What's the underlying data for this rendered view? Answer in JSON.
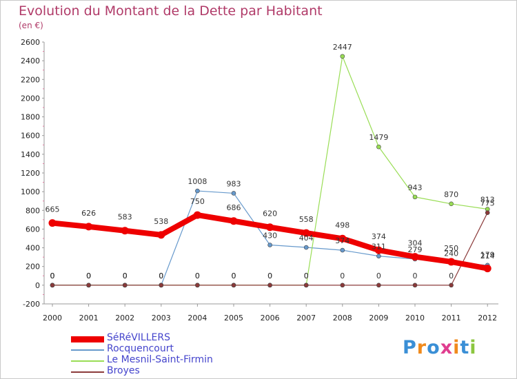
{
  "header": {
    "title": "Evolution du Montant de la Dette par Habitant",
    "subtitle": "(en €)"
  },
  "logo": {
    "text": "Proxiti"
  },
  "chart_data": {
    "type": "line",
    "title": "Evolution du Montant de la Dette par Habitant",
    "subtitle": "(en €)",
    "xlabel": "",
    "ylabel": "",
    "categories": [
      "2000",
      "2001",
      "2002",
      "2003",
      "2004",
      "2005",
      "2006",
      "2007",
      "2008",
      "2009",
      "2010",
      "2011",
      "2012"
    ],
    "ylim": [
      -200,
      2600
    ],
    "yticks": [
      -200,
      0,
      200,
      400,
      600,
      800,
      1000,
      1200,
      1400,
      1600,
      1800,
      2000,
      2200,
      2400,
      2600
    ],
    "grid": false,
    "legend_position": "bottom-left",
    "series": [
      {
        "name": "SéRéVILLERS",
        "color": "#ee0000",
        "width": 8,
        "values": [
          665,
          626,
          583,
          538,
          750,
          686,
          620,
          558,
          498,
          374,
          304,
          250,
          179
        ]
      },
      {
        "name": "Rocquencourt",
        "color": "#6699cc",
        "width": 1.2,
        "values": [
          0,
          0,
          0,
          0,
          1008,
          983,
          430,
          404,
          374,
          311,
          279,
          240,
          214
        ]
      },
      {
        "name": "Le Mesnil-Saint-Firmin",
        "color": "#99dd55",
        "width": 1.2,
        "values": [
          0,
          0,
          0,
          0,
          0,
          0,
          0,
          0,
          2447,
          1479,
          943,
          870,
          813
        ]
      },
      {
        "name": "Broyes",
        "color": "#8b3a3a",
        "width": 1.2,
        "values": [
          0,
          0,
          0,
          0,
          0,
          0,
          0,
          0,
          0,
          0,
          0,
          0,
          775
        ]
      }
    ]
  }
}
